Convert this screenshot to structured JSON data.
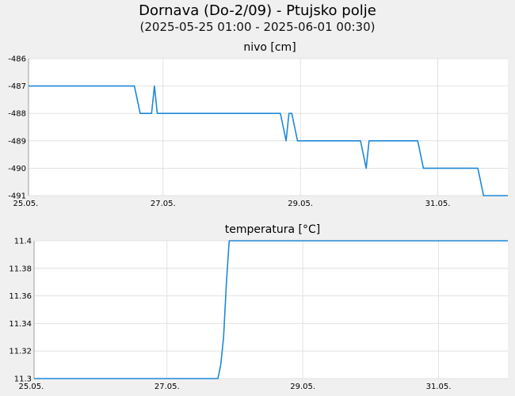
{
  "header": {
    "title": "Dornava (Do-2/09) - Ptujsko polje",
    "subtitle": "(2025-05-25 01:00 - 2025-06-01 00:30)"
  },
  "colors": {
    "line": "#1e88d8",
    "grid": "#dcdcdc",
    "plot_bg": "#ffffff",
    "page_bg": "#f0f0f0"
  },
  "chart_data": [
    {
      "type": "line",
      "title": "nivo [cm]",
      "x_tick_labels": [
        "25.05.",
        "27.05.",
        "29.05.",
        "31.05."
      ],
      "x_ticks": [
        "2025-05-25 00:00",
        "2025-05-27 00:00",
        "2025-05-29 00:00",
        "2025-05-31 00:00"
      ],
      "xlim": [
        "2025-05-25 01:00",
        "2025-06-01 00:30"
      ],
      "ylim": [
        -491,
        -486
      ],
      "y_ticks": [
        -486,
        -487,
        -488,
        -489,
        -490,
        -491
      ],
      "grid": true,
      "series": [
        {
          "x": [
            "2025-05-25 01:00",
            "2025-05-26 14:00",
            "2025-05-26 15:00",
            "2025-05-26 16:00",
            "2025-05-26 20:00",
            "2025-05-26 21:00",
            "2025-05-26 22:00",
            "2025-05-27 01:00",
            "2025-05-28 17:00",
            "2025-05-28 18:00",
            "2025-05-28 19:00",
            "2025-05-28 20:00",
            "2025-05-28 21:00",
            "2025-05-28 22:00",
            "2025-05-28 23:00",
            "2025-05-29 00:00",
            "2025-05-29 01:00",
            "2025-05-29 21:00",
            "2025-05-29 22:00",
            "2025-05-29 23:00",
            "2025-05-30 00:00",
            "2025-05-30 01:00",
            "2025-05-30 17:00",
            "2025-05-30 18:00",
            "2025-05-30 19:00",
            "2025-05-31 14:00",
            "2025-05-31 15:00",
            "2025-05-31 16:00",
            "2025-06-01 00:30"
          ],
          "y": [
            -487,
            -487,
            -487.5,
            -488,
            -488,
            -487,
            -488,
            -488,
            -488,
            -488.5,
            -489,
            -488,
            -488,
            -488.5,
            -489,
            -489,
            -489,
            -489,
            -489.5,
            -490,
            -489,
            -489,
            -489,
            -489.5,
            -490,
            -490,
            -490.5,
            -491,
            -491
          ]
        }
      ]
    },
    {
      "type": "line",
      "title": "temperatura [°C]",
      "x_tick_labels": [
        "25.05.",
        "27.05.",
        "29.05.",
        "31.05."
      ],
      "x_ticks": [
        "2025-05-25 00:00",
        "2025-05-27 00:00",
        "2025-05-29 00:00",
        "2025-05-31 00:00"
      ],
      "xlim": [
        "2025-05-25 01:00",
        "2025-06-01 00:30"
      ],
      "ylim": [
        11.3,
        11.4
      ],
      "y_ticks": [
        11.3,
        11.32,
        11.34,
        11.36,
        11.38,
        11.4
      ],
      "grid": true,
      "series": [
        {
          "x": [
            "2025-05-25 01:00",
            "2025-05-27 18:00",
            "2025-05-27 19:00",
            "2025-05-27 20:00",
            "2025-05-27 21:00",
            "2025-05-27 22:00",
            "2025-06-01 00:30"
          ],
          "y": [
            11.3,
            11.3,
            11.31,
            11.33,
            11.37,
            11.4,
            11.4
          ]
        }
      ]
    }
  ]
}
